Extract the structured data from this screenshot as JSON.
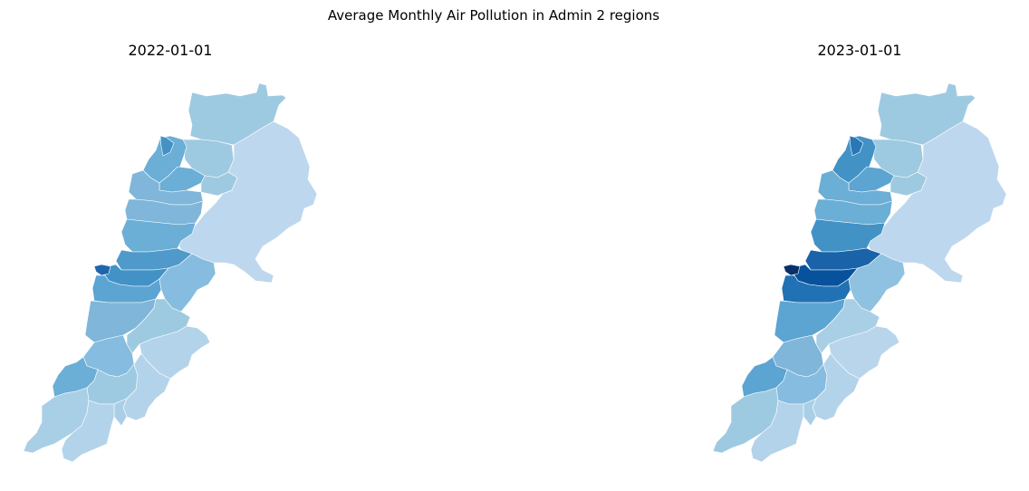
{
  "figure": {
    "title": "Average Monthly Air Pollution in Admin 2 regions"
  },
  "panels": [
    {
      "date": "2022-01-01",
      "region_colors": {
        "akkar": "#9ecae1",
        "minieh": "#6baed6",
        "tripoli": "#4292c6",
        "zgharta": "#9ecae1",
        "koura": "#6baed6",
        "bsharri": "#9ecae1",
        "hermel_baalbek": "#bdd7ee",
        "batroun": "#7fb6da",
        "jbeil": "#7fb6da",
        "kesrouane": "#6baed6",
        "metn": "#4f9acb",
        "beirut": "#2166ac",
        "baabda": "#4292c6",
        "aley": "#5ca4d2",
        "zahle": "#86bcdf",
        "chouf": "#7fb6da",
        "west_bekaa": "#9ecae1",
        "rachaya": "#b3d3ea",
        "jezzine": "#86bcdf",
        "saida": "#6baed6",
        "nabatieh": "#9ecae1",
        "hasbaya": "#b3d3ea",
        "marjayoun": "#a9cfe6",
        "tyre": "#a9cfe6",
        "bint_jbeil": "#b3d3ea"
      }
    },
    {
      "date": "2023-01-01",
      "region_colors": {
        "akkar": "#9ecae1",
        "minieh": "#4292c6",
        "tripoli": "#2878b8",
        "zgharta": "#9ecae1",
        "koura": "#5ca4d2",
        "bsharri": "#9ecae1",
        "hermel_baalbek": "#bdd7ee",
        "batroun": "#6baed6",
        "jbeil": "#6baed6",
        "kesrouane": "#4292c6",
        "metn": "#1a63a8",
        "beirut": "#08306b",
        "baabda": "#08519c",
        "aley": "#2171b5",
        "zahle": "#8fc1e0",
        "chouf": "#5ca4d2",
        "west_bekaa": "#a9cfe6",
        "rachaya": "#b8d5eb",
        "jezzine": "#7fb6da",
        "saida": "#5ca4d2",
        "nabatieh": "#86bcdf",
        "hasbaya": "#b3d3ea",
        "marjayoun": "#a9cfe6",
        "tyre": "#9ecae1",
        "bint_jbeil": "#b3d3ea"
      }
    }
  ]
}
